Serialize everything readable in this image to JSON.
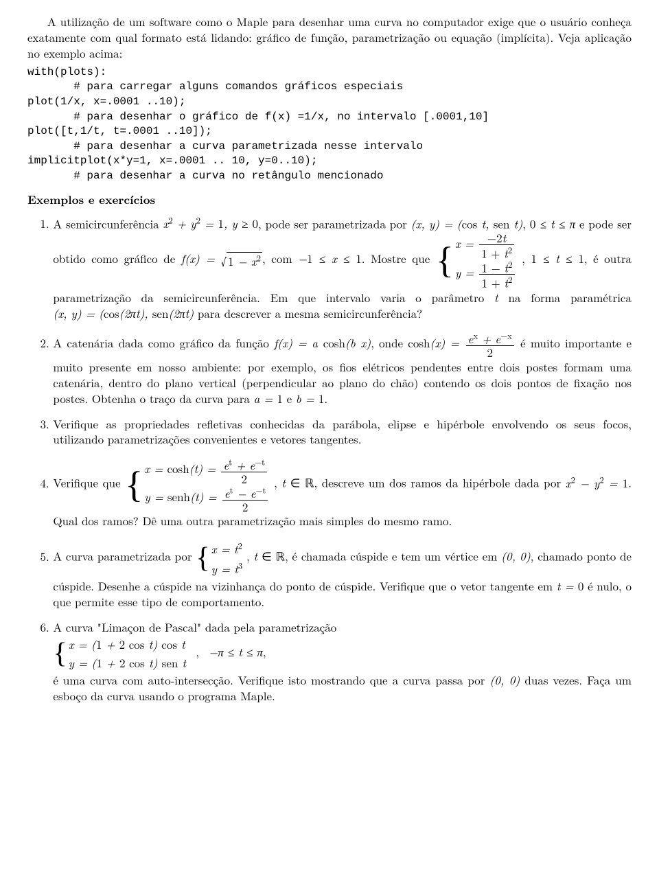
{
  "intro": "A utilização de um software como o Maple para desenhar uma curva no computador exige que o usuário conheça exatamente com qual formato está lidando: gráfico de função, parametrização ou equação (implícita). Veja aplicação no exemplo acima:",
  "code": "with(plots):\n       # para carregar alguns comandos gráficos especiais\nplot(1/x, x=.0001 ..10);\n       # para desenhar o gráfico de f(x) =1/x, no intervalo [.0001,10]\nplot([t,1/t, t=.0001 ..10]);\n       # para desenhar a curva parametrizada nesse intervalo\nimplicitplot(x*y=1, x=.0001 .. 10, y=0..10);\n       # para desenhar a curva no retângulo mencionado",
  "section": "Exemplos e exercícios",
  "ex1": {
    "a": "A semicircunferência ",
    "b": ", pode ser parametrizada por ",
    "c": " e pode ser obtido como gráfico de ",
    "d": ", com ",
    "e": ". Mostre que ",
    "f": ", é outra parametrização da semicircunferência. Em que intervalo varia o parâmetro ",
    "g": " na forma paramétrica ",
    "h": " para descrever a mesma semicircunferência?"
  },
  "ex2": {
    "a": "A catenária dada como gráfico da função ",
    "b": ", onde ",
    "c": " é muito importante e muito presente em nosso ambiente: por exemplo, os fios elétricos pendentes entre dois postes formam uma catenária, dentro do plano vertical (perpendicular ao plano do chão) contendo os dois pontos de fixação nos postes. Obtenha o traço da curva para ",
    "d": " e "
  },
  "ex3": "Verifique as propriedades refletivas conhecidas da parábola, elipse e hipérbole envolvendo os seus focos, utilizando parametrizações convenientes e vetores tangentes.",
  "ex4": {
    "a": "Verifique que ",
    "b": ", descreve um dos ramos da hipérbole dada por ",
    "c": ". Qual dos ramos? Dê uma outra parametrização mais simples do mesmo ramo."
  },
  "ex5": {
    "a": "A curva parametrizada por ",
    "b": ", é chamada cúspide e tem um vértice em ",
    "c": ", chamado ponto de cúspide. Desenhe a cúspide na vizinhança do ponto de cúspide. Verifique que o vetor tangente em ",
    "d": " é nulo, o que permite esse tipo de comportamento."
  },
  "ex6": {
    "a": "A curva \"Limaçon de Pascal\" dada pela parametrização",
    "b": "é uma curva com auto-intersecção. Verifique isto mostrando que a curva passa por ",
    "c": " duas vezes. Faça um esboço da curva usando o programa Maple."
  }
}
